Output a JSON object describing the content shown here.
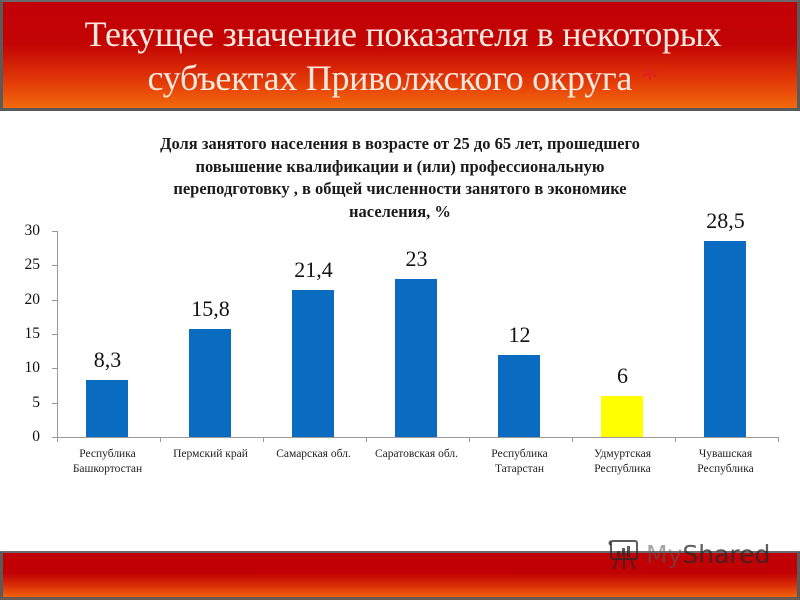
{
  "header": {
    "title_line1": "Текущее значение показателя в некоторых",
    "title_line2": "субъектах Приволжского округа",
    "asterisk": "*"
  },
  "chart_data": {
    "type": "bar",
    "title": "Доля занятого населения в возрасте от 25 до 65 лет, прошедшего повышение квалификации и (или) профессиональную переподготовку , в общей численности занятого в экономике населения, %",
    "title_lines": [
      "Доля занятого населения в возрасте от 25 до 65 лет, прошедшего",
      "повышение квалификации и (или) профессиональную",
      "переподготовку , в общей численности занятого в экономике",
      "населения, %"
    ],
    "categories": [
      "Республика Башкортостан",
      "Пермский край",
      "Самарская обл.",
      "Саратовская обл.",
      "Республика Татарстан",
      "Удмуртская Республика",
      "Чувашская Республика"
    ],
    "category_lines": [
      [
        "Республика",
        "Башкортостан"
      ],
      [
        "Пермский край"
      ],
      [
        "Самарская обл."
      ],
      [
        "Саратовская обл."
      ],
      [
        "Республика",
        "Татарстан"
      ],
      [
        "Удмуртская",
        "Республика"
      ],
      [
        "Чувашская",
        "Республика"
      ]
    ],
    "values": [
      8.3,
      15.8,
      21.4,
      23,
      12,
      6,
      28.5
    ],
    "value_labels": [
      "8,3",
      "15,8",
      "21,4",
      "23",
      "12",
      "6",
      "28,5"
    ],
    "bar_colors": [
      "#0a6cc1",
      "#0a6cc1",
      "#0a6cc1",
      "#0a6cc1",
      "#0a6cc1",
      "#ffff00",
      "#0a6cc1"
    ],
    "xlabel": "",
    "ylabel": "",
    "ylim": [
      0,
      30
    ],
    "yticks": [
      0,
      5,
      10,
      15,
      20,
      25,
      30
    ],
    "grid": false,
    "legend": null
  },
  "colors": {
    "bar_default": "#0a6cc1",
    "bar_highlight": "#ffff00",
    "header_red": "#c10006",
    "header_orange": "#f26a0c"
  },
  "watermark": {
    "text_my": "My",
    "text_shared": "Shared"
  }
}
